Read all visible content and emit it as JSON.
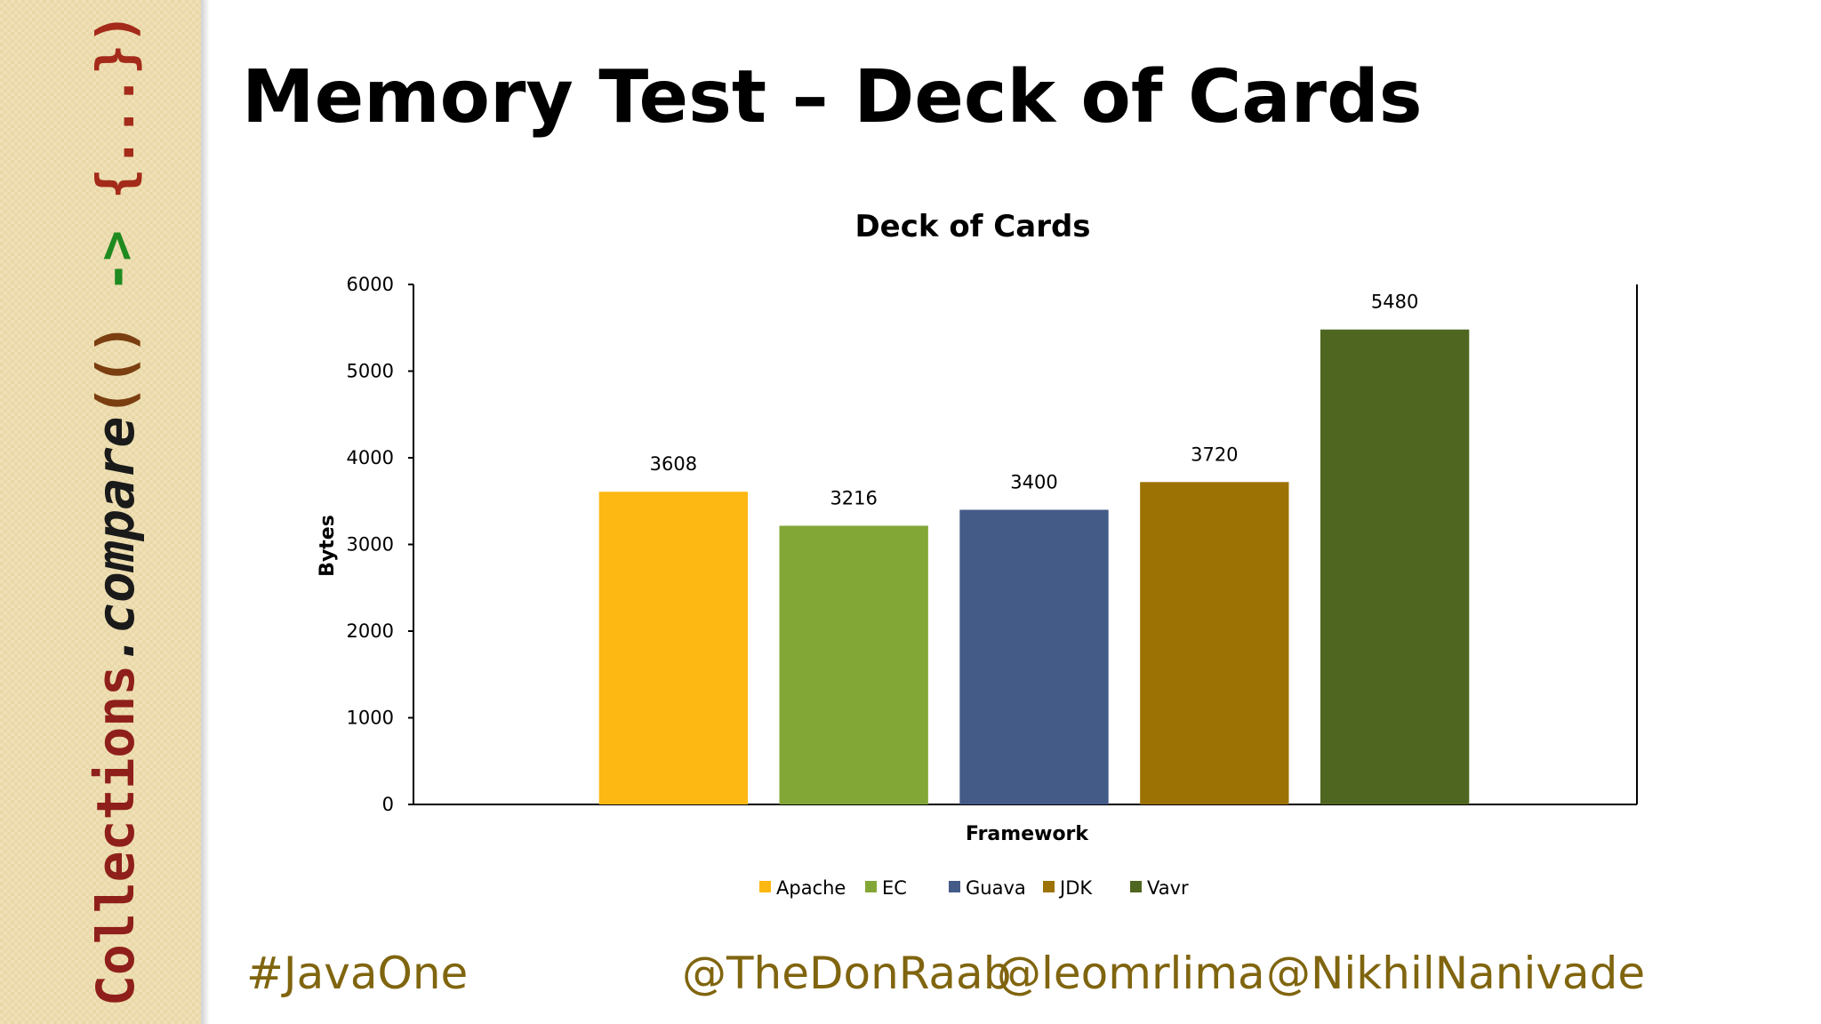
{
  "sidebar": {
    "parts": [
      "Collections",
      ".compare",
      "(()",
      " -> ",
      "{...})"
    ]
  },
  "slide_title": "Memory Test – Deck of Cards",
  "footer": {
    "hashtag": "#JavaOne",
    "handles": [
      "@TheDonRaab",
      "@leomrlima",
      "@NikhilNanivade"
    ]
  },
  "chart_data": {
    "type": "bar",
    "title": "Deck of Cards",
    "x_label": "Framework",
    "y_label": "Bytes",
    "categories": [
      null
    ],
    "series": [
      {
        "name": "Apache",
        "color": "#fdb813",
        "values": [
          3608
        ]
      },
      {
        "name": "EC",
        "color": "#83a737",
        "values": [
          3216
        ]
      },
      {
        "name": "Guava",
        "color": "#445b88",
        "values": [
          3400
        ]
      },
      {
        "name": "JDK",
        "color": "#9d7205",
        "values": [
          3720
        ]
      },
      {
        "name": "Vavr",
        "color": "#4f6620",
        "values": [
          5480
        ]
      }
    ],
    "ylim": [
      0,
      6000
    ],
    "yticks": [
      0,
      1000,
      2000,
      3000,
      4000,
      5000,
      6000
    ],
    "grid": false,
    "legend": "bottom"
  }
}
